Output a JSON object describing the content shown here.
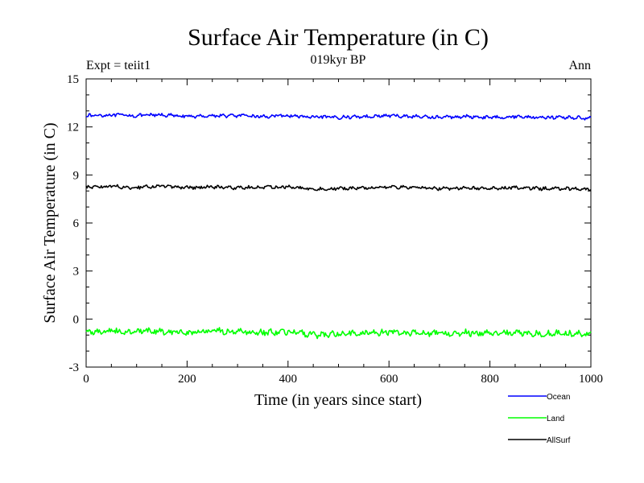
{
  "chart_data": {
    "type": "line",
    "title": "Surface Air Temperature (in C)",
    "subtitle": "019kyr BP",
    "left_note": "Expt = teiit1",
    "right_note": "Ann",
    "xlabel": "Time (in years since start)",
    "ylabel": "Surface Air Temperature (in C)",
    "xlim": [
      0,
      1000
    ],
    "ylim": [
      -3,
      15
    ],
    "xticks": [
      0,
      200,
      400,
      600,
      800,
      1000
    ],
    "yticks": [
      -3,
      0,
      3,
      6,
      9,
      12,
      15
    ],
    "grid": false,
    "legend_position": "bottom-right outside",
    "x": [
      0,
      50,
      100,
      150,
      200,
      250,
      300,
      350,
      400,
      450,
      500,
      550,
      600,
      650,
      700,
      750,
      800,
      850,
      900,
      950,
      1000
    ],
    "series": [
      {
        "name": "Ocean",
        "color": "#0000ff",
        "values": [
          12.7,
          12.75,
          12.7,
          12.75,
          12.65,
          12.7,
          12.7,
          12.65,
          12.7,
          12.6,
          12.6,
          12.65,
          12.7,
          12.65,
          12.6,
          12.65,
          12.6,
          12.65,
          12.6,
          12.6,
          12.55
        ]
      },
      {
        "name": "Land",
        "color": "#00ff00",
        "values": [
          -0.8,
          -0.75,
          -0.8,
          -0.75,
          -0.85,
          -0.75,
          -0.8,
          -0.85,
          -0.8,
          -1.0,
          -0.9,
          -0.85,
          -0.8,
          -0.85,
          -0.9,
          -0.85,
          -0.9,
          -0.85,
          -0.9,
          -0.9,
          -0.95
        ]
      },
      {
        "name": "AllSurf",
        "color": "#000000",
        "values": [
          8.25,
          8.3,
          8.2,
          8.3,
          8.2,
          8.25,
          8.2,
          8.25,
          8.25,
          8.1,
          8.15,
          8.2,
          8.25,
          8.2,
          8.15,
          8.2,
          8.15,
          8.2,
          8.15,
          8.15,
          8.1
        ]
      }
    ]
  }
}
